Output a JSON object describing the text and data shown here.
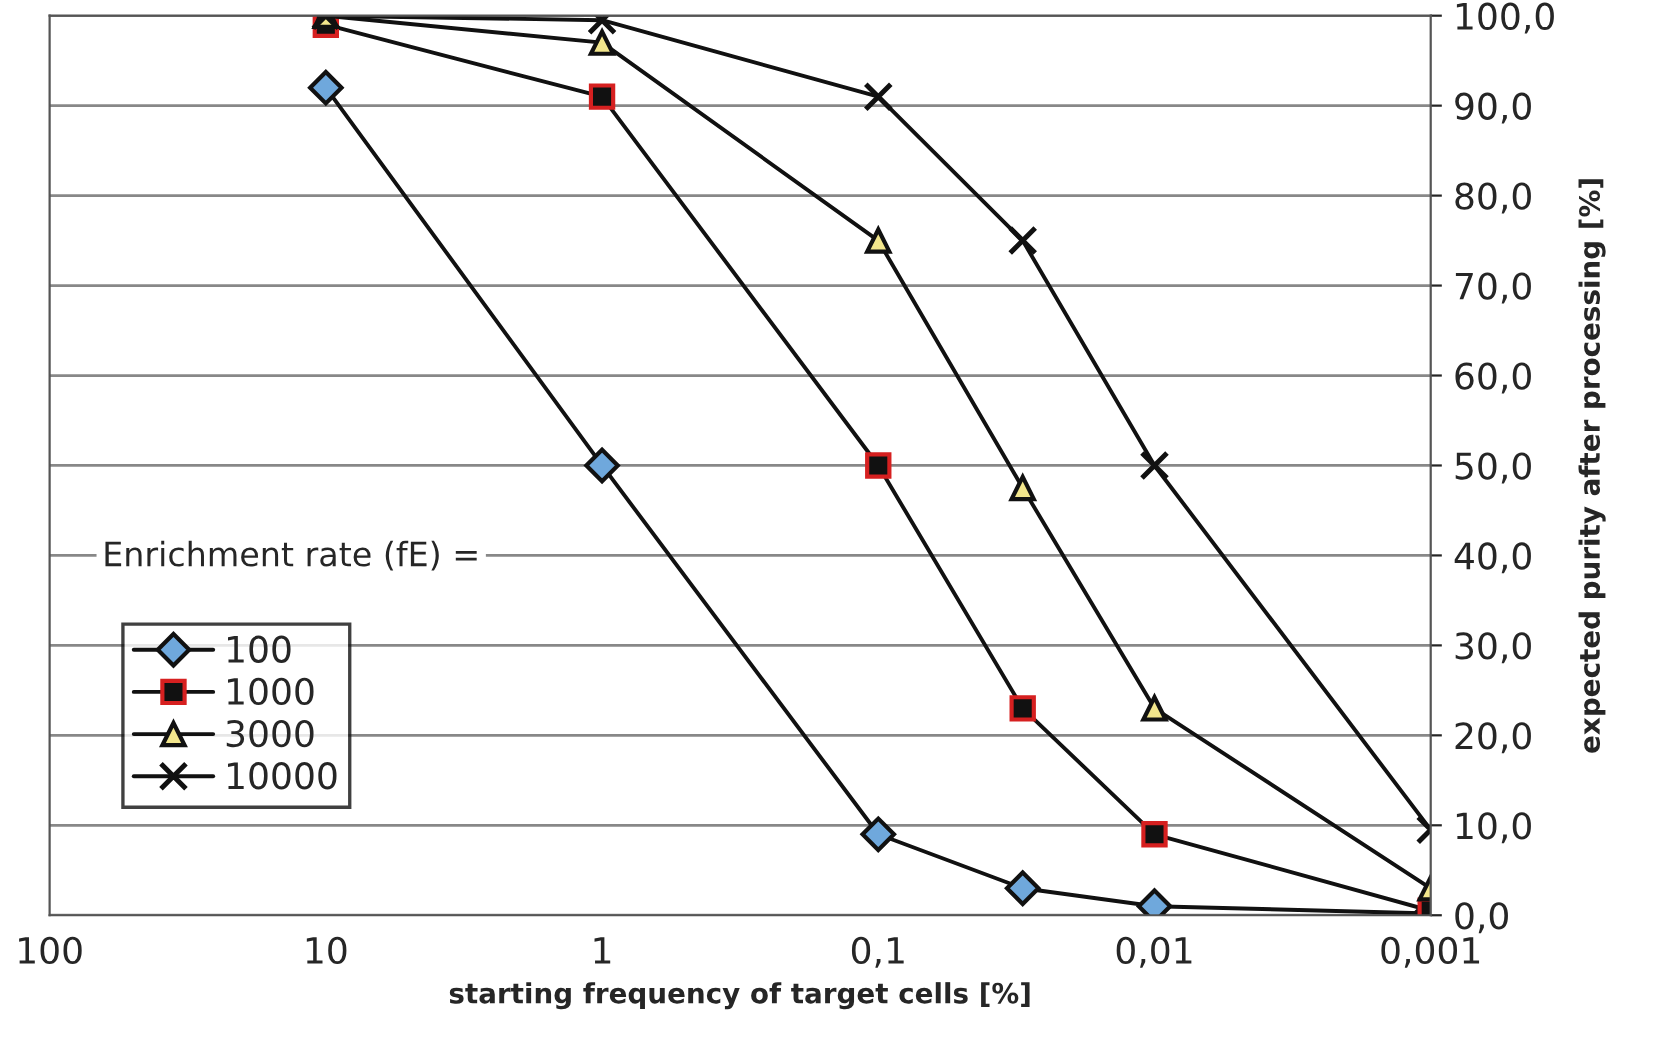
{
  "chart_data": {
    "type": "line",
    "xlabel": "starting frequency of target cells [%]",
    "ylabel": "expected purity after processing [%]",
    "legend_title": "Enrichment rate (fE) =",
    "log": "x",
    "x": [
      10,
      1,
      0.1,
      0.03,
      0.01,
      0.001
    ],
    "series": [
      {
        "name": "100",
        "color": "#6fa8dc",
        "marker": "diamond",
        "values": [
          92,
          50,
          9,
          3,
          1,
          0.2
        ]
      },
      {
        "name": "1000",
        "color": "#111111",
        "marker": "square",
        "values": [
          99,
          91,
          50,
          23,
          9,
          0.5
        ]
      },
      {
        "name": "3000",
        "color": "#f2e68c",
        "marker": "triangle",
        "values": [
          100,
          97,
          75,
          47.5,
          23,
          3
        ]
      },
      {
        "name": "10000",
        "color": "#111111",
        "marker": "cross",
        "values": [
          100,
          99.5,
          91,
          75,
          50,
          9.5
        ]
      }
    ],
    "xlim": [
      100,
      0.001
    ],
    "xticks": [
      {
        "value": 100,
        "label": "100"
      },
      {
        "value": 10,
        "label": "10"
      },
      {
        "value": 1,
        "label": "1"
      },
      {
        "value": 0.1,
        "label": "0,1"
      },
      {
        "value": 0.01,
        "label": "0,01"
      },
      {
        "value": 0.001,
        "label": "0,001"
      }
    ],
    "ylim": [
      0,
      100
    ],
    "yticks": [
      {
        "value": 0,
        "label": "0,0"
      },
      {
        "value": 10,
        "label": "10,0"
      },
      {
        "value": 20,
        "label": "20,0"
      },
      {
        "value": 30,
        "label": "30,0"
      },
      {
        "value": 40,
        "label": "40,0"
      },
      {
        "value": 50,
        "label": "50,0"
      },
      {
        "value": 60,
        "label": "60,0"
      },
      {
        "value": 70,
        "label": "70,0"
      },
      {
        "value": 80,
        "label": "80,0"
      },
      {
        "value": 90,
        "label": "90,0"
      },
      {
        "value": 100,
        "label": "100,0"
      }
    ],
    "grid": "y",
    "legend": "bottom left",
    "line_style": "solid"
  }
}
